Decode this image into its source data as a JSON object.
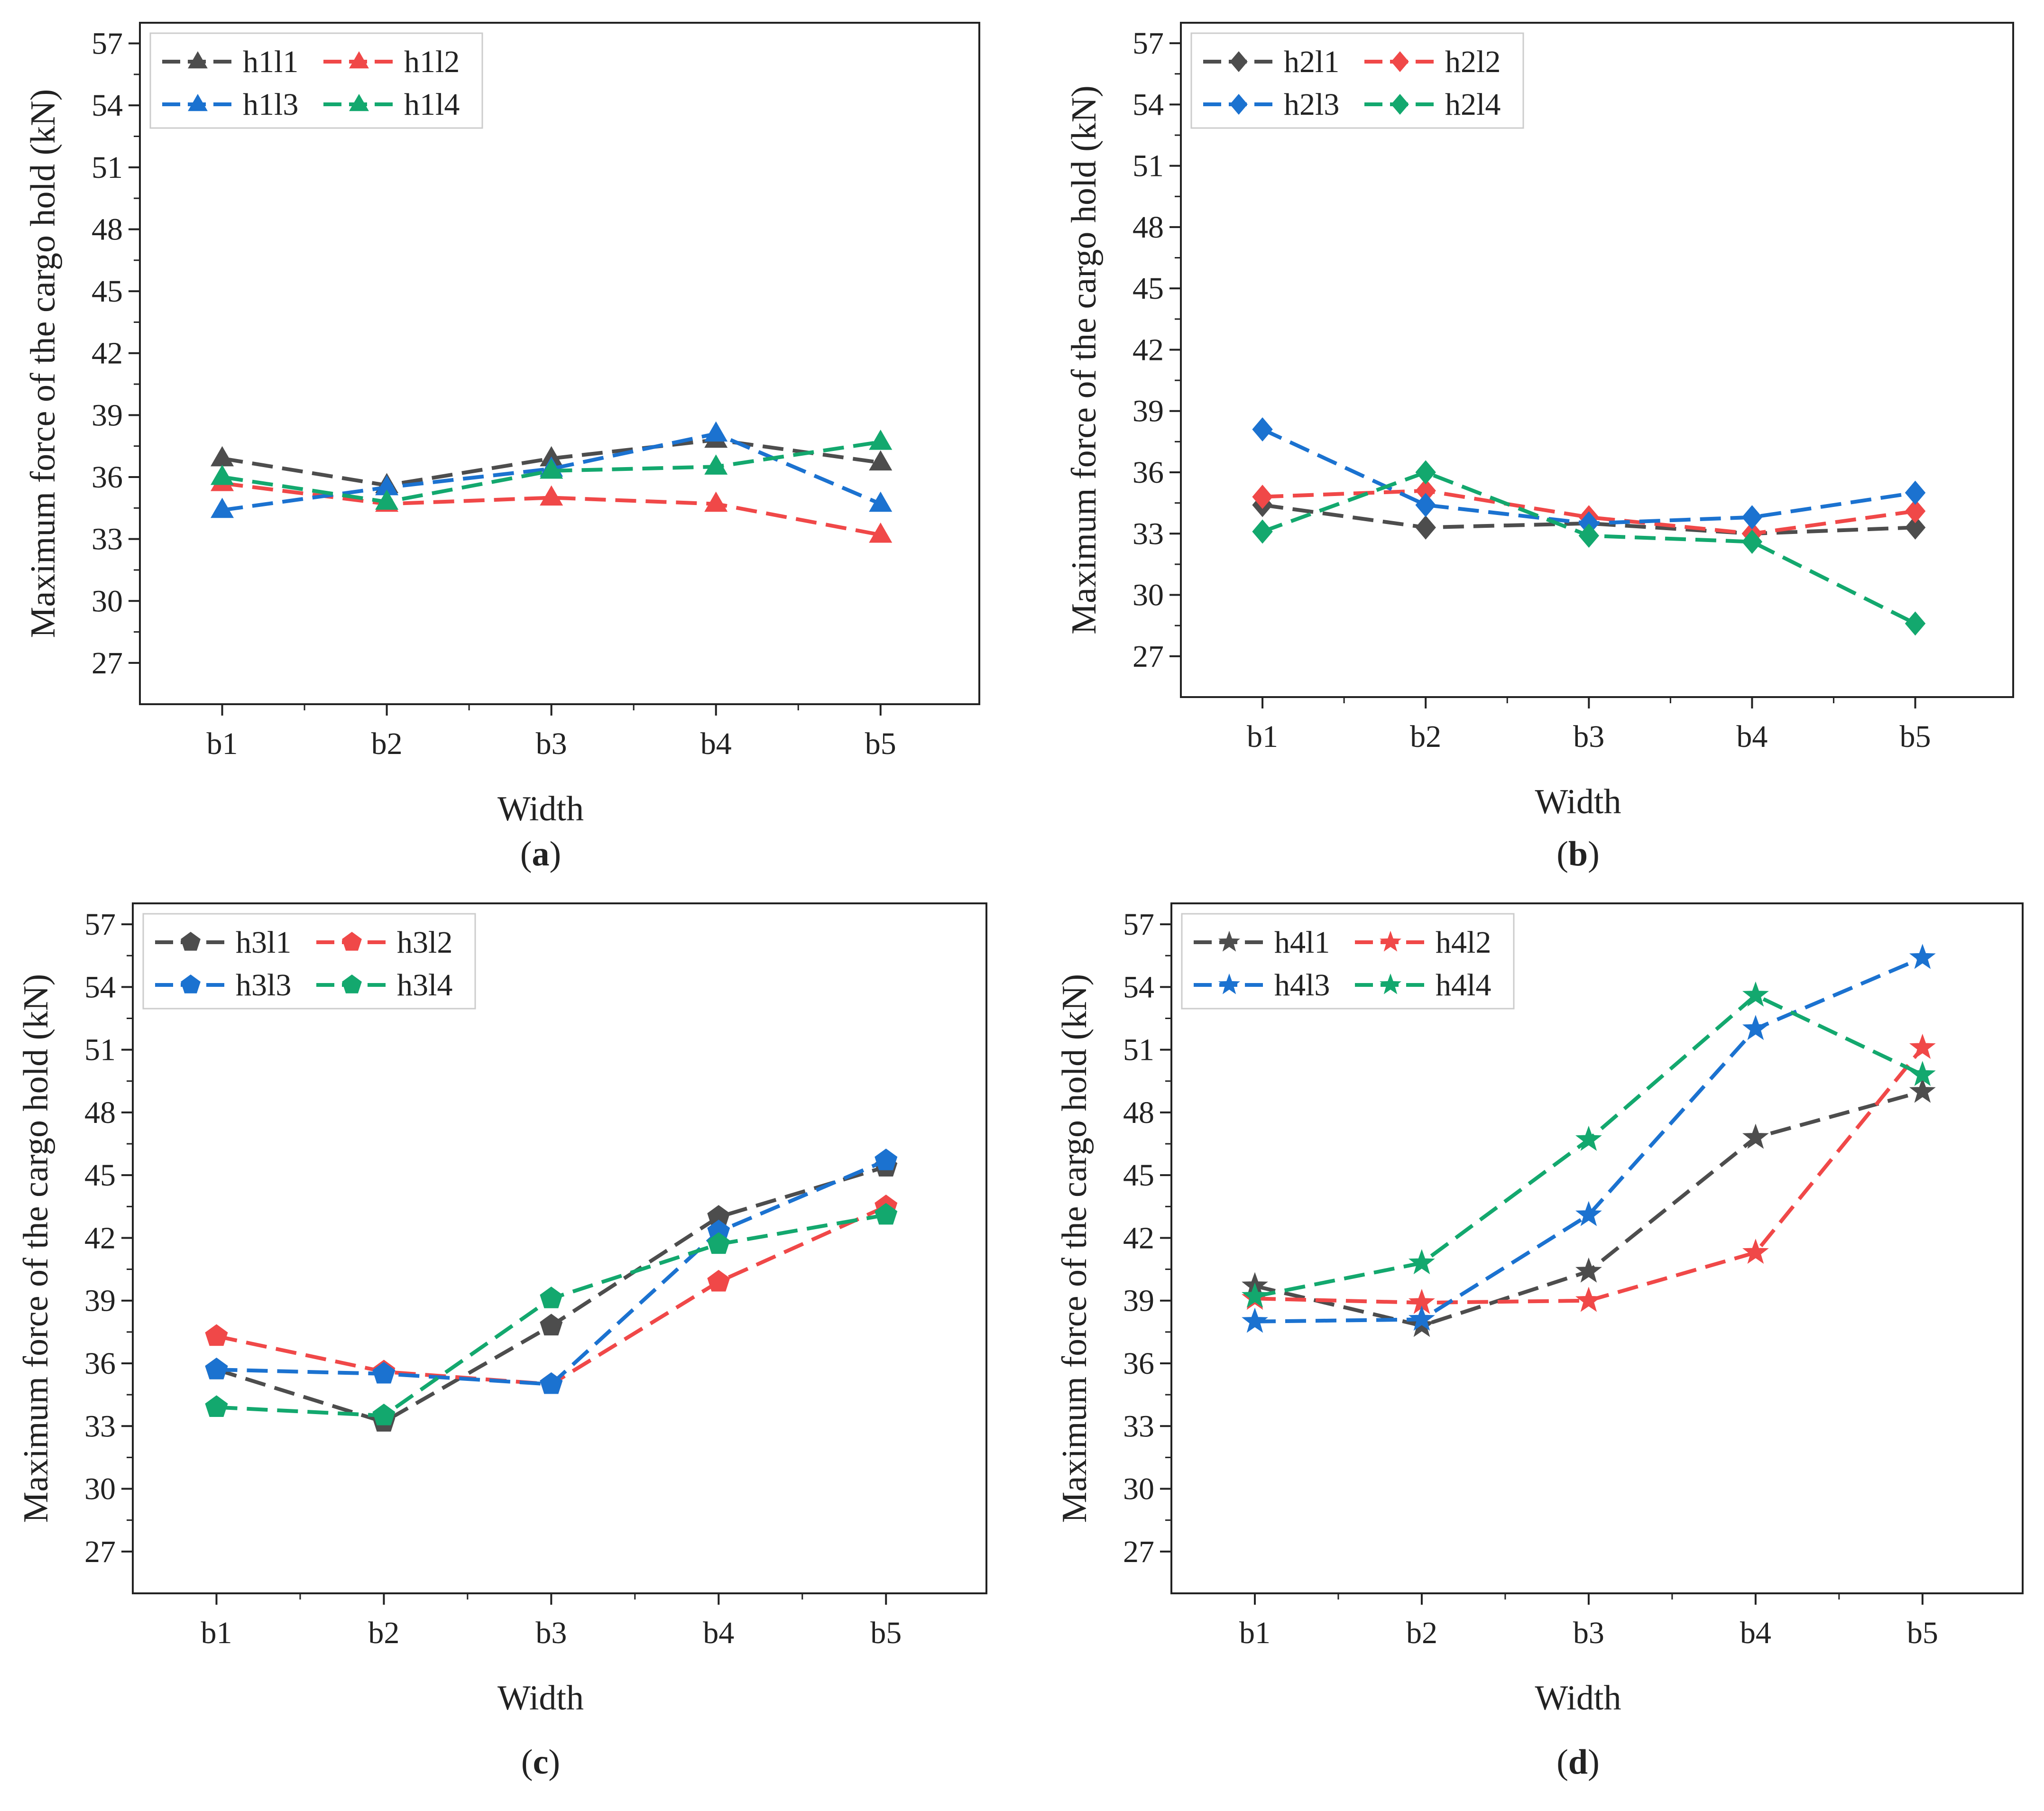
{
  "chart_data": [
    {
      "type": "line",
      "panel": "a",
      "caption": {
        "open": "(",
        "letter": "a",
        "close": ")"
      },
      "xlabel": "Width",
      "ylabel": "Maximum force of the cargo hold (kN)",
      "categories": [
        "b1",
        "b2",
        "b3",
        "b4",
        "b5"
      ],
      "ylim": [
        25,
        58
      ],
      "yticks": [
        "27",
        "30",
        "33",
        "36",
        "39",
        "42",
        "45",
        "48",
        "51",
        "54",
        "57"
      ],
      "marker": "triangle",
      "legend_position": "top-left",
      "series": [
        {
          "name": "h1l1",
          "color": "#4d4d4d",
          "values": [
            36.9,
            35.6,
            36.9,
            37.8,
            36.7
          ]
        },
        {
          "name": "h1l2",
          "color": "#f04848",
          "values": [
            35.7,
            34.7,
            35.0,
            34.7,
            33.2
          ]
        },
        {
          "name": "h1l3",
          "color": "#1b72d0",
          "values": [
            34.4,
            35.5,
            36.4,
            38.1,
            34.7
          ]
        },
        {
          "name": "h1l4",
          "color": "#13a86e",
          "values": [
            36.0,
            34.8,
            36.3,
            36.5,
            37.7
          ]
        }
      ]
    },
    {
      "type": "line",
      "panel": "b",
      "caption": {
        "open": "(",
        "letter": "b",
        "close": ")"
      },
      "xlabel": "Width",
      "ylabel": "Maximum force of the cargo hold (kN)",
      "categories": [
        "b1",
        "b2",
        "b3",
        "b4",
        "b5"
      ],
      "ylim": [
        25,
        58
      ],
      "yticks": [
        "27",
        "30",
        "33",
        "36",
        "39",
        "42",
        "45",
        "48",
        "51",
        "54",
        "57"
      ],
      "marker": "diamond",
      "legend_position": "top-left",
      "series": [
        {
          "name": "h2l1",
          "color": "#4d4d4d",
          "values": [
            34.4,
            33.3,
            33.5,
            33.0,
            33.3
          ]
        },
        {
          "name": "h2l2",
          "color": "#f04848",
          "values": [
            34.8,
            35.1,
            33.8,
            33.0,
            34.1
          ]
        },
        {
          "name": "h2l3",
          "color": "#1b72d0",
          "values": [
            38.1,
            34.4,
            33.5,
            33.8,
            35.0
          ]
        },
        {
          "name": "h2l4",
          "color": "#13a86e",
          "values": [
            33.1,
            36.0,
            32.9,
            32.6,
            28.6
          ]
        }
      ]
    },
    {
      "type": "line",
      "panel": "c",
      "caption": {
        "open": "(",
        "letter": "c",
        "close": ")"
      },
      "xlabel": "Width",
      "ylabel": "Maximum force of the cargo hold (kN)",
      "categories": [
        "b1",
        "b2",
        "b3",
        "b4",
        "b5"
      ],
      "ylim": [
        25,
        58
      ],
      "yticks": [
        "27",
        "30",
        "33",
        "36",
        "39",
        "42",
        "45",
        "48",
        "51",
        "54",
        "57"
      ],
      "marker": "pentagon",
      "legend_position": "top-left",
      "series": [
        {
          "name": "h3l1",
          "color": "#4d4d4d",
          "values": [
            35.7,
            33.2,
            37.8,
            43.0,
            45.4
          ]
        },
        {
          "name": "h3l2",
          "color": "#f04848",
          "values": [
            37.3,
            35.6,
            35.0,
            39.9,
            43.5
          ]
        },
        {
          "name": "h3l3",
          "color": "#1b72d0",
          "values": [
            35.7,
            35.5,
            35.0,
            42.3,
            45.7
          ]
        },
        {
          "name": "h3l4",
          "color": "#13a86e",
          "values": [
            33.9,
            33.5,
            39.1,
            41.7,
            43.1
          ]
        }
      ]
    },
    {
      "type": "line",
      "panel": "d",
      "caption": {
        "open": "(",
        "letter": "d",
        "close": ")"
      },
      "xlabel": "Width",
      "ylabel": "Maximum force of the cargo hold (kN)",
      "categories": [
        "b1",
        "b2",
        "b3",
        "b4",
        "b5"
      ],
      "ylim": [
        25,
        58
      ],
      "yticks": [
        "27",
        "30",
        "33",
        "36",
        "39",
        "42",
        "45",
        "48",
        "51",
        "54",
        "57"
      ],
      "marker": "star",
      "legend_position": "top-left",
      "series": [
        {
          "name": "h4l1",
          "color": "#4d4d4d",
          "values": [
            39.7,
            37.8,
            40.4,
            46.8,
            49.0
          ]
        },
        {
          "name": "h4l2",
          "color": "#f04848",
          "values": [
            39.1,
            38.9,
            39.0,
            41.3,
            51.1
          ]
        },
        {
          "name": "h4l3",
          "color": "#1b72d0",
          "values": [
            38.0,
            38.1,
            43.1,
            52.0,
            55.4
          ]
        },
        {
          "name": "h4l4",
          "color": "#13a86e",
          "values": [
            39.2,
            40.8,
            46.7,
            53.6,
            49.8
          ]
        }
      ]
    }
  ]
}
